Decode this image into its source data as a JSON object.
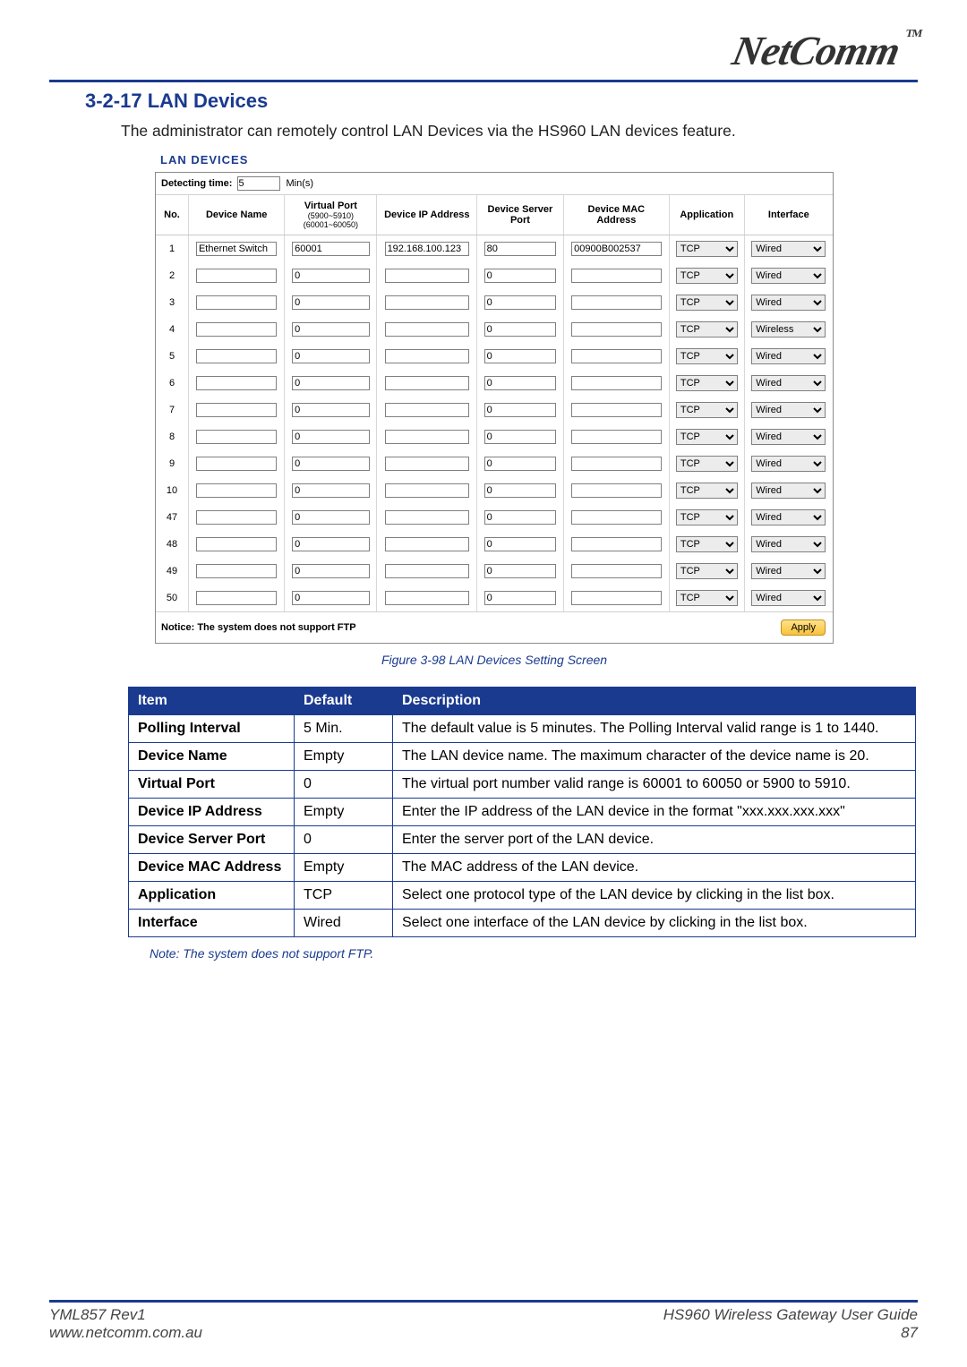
{
  "brand": {
    "name": "NetComm",
    "tm": "TM"
  },
  "section": {
    "title": "3-2-17 LAN Devices"
  },
  "intro": "The administrator can remotely control LAN Devices via the HS960 LAN devices feature.",
  "panel": {
    "heading": "LAN DEVICES",
    "detect_label": "Detecting time:",
    "detect_value": "5",
    "detect_unit": "Min(s)",
    "columns": {
      "no": "No.",
      "device_name": "Device Name",
      "virtual_port": "Virtual Port",
      "virtual_port_sub": "(5900~5910) (60001~60050)",
      "ip": "Device IP Address",
      "server_port": "Device Server Port",
      "mac": "Device MAC Address",
      "application": "Application",
      "interface": "Interface"
    },
    "app_options": [
      "TCP"
    ],
    "iface_options": [
      "Wired",
      "Wireless"
    ],
    "rows": [
      {
        "no": "1",
        "name": "Ethernet Switch",
        "vport": "60001",
        "ip": "192.168.100.123",
        "sport": "80",
        "mac": "00900B002537",
        "app": "TCP",
        "iface": "Wired"
      },
      {
        "no": "2",
        "name": "",
        "vport": "0",
        "ip": "",
        "sport": "0",
        "mac": "",
        "app": "TCP",
        "iface": "Wired"
      },
      {
        "no": "3",
        "name": "",
        "vport": "0",
        "ip": "",
        "sport": "0",
        "mac": "",
        "app": "TCP",
        "iface": "Wired"
      },
      {
        "no": "4",
        "name": "",
        "vport": "0",
        "ip": "",
        "sport": "0",
        "mac": "",
        "app": "TCP",
        "iface": "Wireless"
      },
      {
        "no": "5",
        "name": "",
        "vport": "0",
        "ip": "",
        "sport": "0",
        "mac": "",
        "app": "TCP",
        "iface": "Wired"
      },
      {
        "no": "6",
        "name": "",
        "vport": "0",
        "ip": "",
        "sport": "0",
        "mac": "",
        "app": "TCP",
        "iface": "Wired"
      },
      {
        "no": "7",
        "name": "",
        "vport": "0",
        "ip": "",
        "sport": "0",
        "mac": "",
        "app": "TCP",
        "iface": "Wired"
      },
      {
        "no": "8",
        "name": "",
        "vport": "0",
        "ip": "",
        "sport": "0",
        "mac": "",
        "app": "TCP",
        "iface": "Wired"
      },
      {
        "no": "9",
        "name": "",
        "vport": "0",
        "ip": "",
        "sport": "0",
        "mac": "",
        "app": "TCP",
        "iface": "Wired"
      },
      {
        "no": "10",
        "name": "",
        "vport": "0",
        "ip": "",
        "sport": "0",
        "mac": "",
        "app": "TCP",
        "iface": "Wired"
      },
      {
        "no": "47",
        "name": "",
        "vport": "0",
        "ip": "",
        "sport": "0",
        "mac": "",
        "app": "TCP",
        "iface": "Wired"
      },
      {
        "no": "48",
        "name": "",
        "vport": "0",
        "ip": "",
        "sport": "0",
        "mac": "",
        "app": "TCP",
        "iface": "Wired"
      },
      {
        "no": "49",
        "name": "",
        "vport": "0",
        "ip": "",
        "sport": "0",
        "mac": "",
        "app": "TCP",
        "iface": "Wired"
      },
      {
        "no": "50",
        "name": "",
        "vport": "0",
        "ip": "",
        "sport": "0",
        "mac": "",
        "app": "TCP",
        "iface": "Wired"
      }
    ],
    "notice": "Notice: The system does not support FTP",
    "apply_label": "Apply"
  },
  "figure_caption": "Figure 3-98 LAN Devices Setting Screen",
  "desc_table": {
    "headers": {
      "item": "Item",
      "default": "Default",
      "description": "Description"
    },
    "rows": [
      {
        "item": "Polling Interval",
        "default": "5 Min.",
        "desc": "The default value is 5 minutes. The Polling Interval valid range is 1 to 1440."
      },
      {
        "item": "Device Name",
        "default": "Empty",
        "desc": "The LAN device name. The maximum character of the device name is 20."
      },
      {
        "item": "Virtual Port",
        "default": "0",
        "desc": "The virtual port number valid range is 60001 to 60050 or 5900 to 5910."
      },
      {
        "item": "Device IP Address",
        "default": "Empty",
        "desc": "Enter the IP address of the LAN device in the format \"xxx.xxx.xxx.xxx\""
      },
      {
        "item": "Device Server Port",
        "default": "0",
        "desc": "Enter the server port of the LAN device."
      },
      {
        "item": "Device MAC Address",
        "default": "Empty",
        "desc": "The MAC address of the LAN device."
      },
      {
        "item": "Application",
        "default": "TCP",
        "desc": "Select one protocol type of the LAN device by clicking in the list box."
      },
      {
        "item": "Interface",
        "default": "Wired",
        "desc": "Select one interface of the LAN device by clicking in the list box."
      }
    ]
  },
  "note": "Note: The system does not support FTP.",
  "footer": {
    "left1": "YML857 Rev1",
    "left2": "www.netcomm.com.au",
    "right1": "HS960 Wireless Gateway User Guide",
    "right2": "87"
  },
  "colors": {
    "brand_blue": "#1a3a8f",
    "panel_border": "#8a8a8a",
    "apply_bg_top": "#ffe28a",
    "apply_bg_bot": "#f8c23a"
  }
}
